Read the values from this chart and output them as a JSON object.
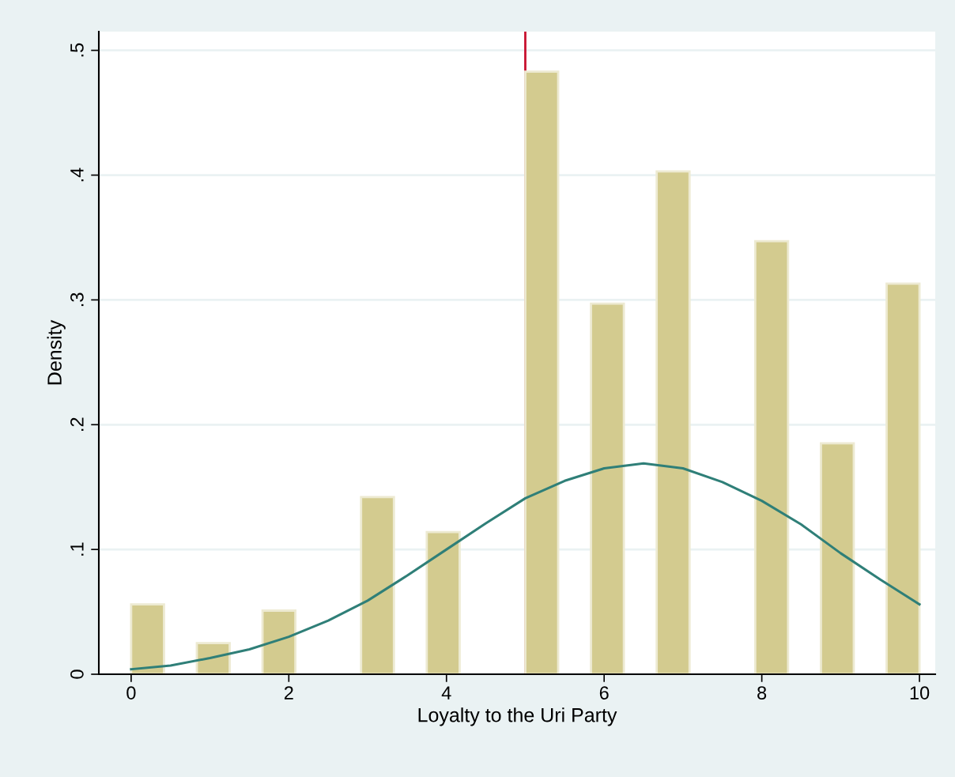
{
  "chart_data": {
    "type": "histogram",
    "xlabel": "Loyalty to the Uri Party",
    "ylabel": "Density",
    "series": [
      {
        "color": "#d3cb8f",
        "bins": [
          0,
          0.4167,
          0.8333,
          1.25,
          1.6667,
          2.0833,
          2.5,
          2.9167,
          3.3333,
          3.75,
          4.1667,
          4.5833,
          5,
          5.4167,
          5.8333,
          6.25,
          6.6667,
          7.0833,
          7.5,
          7.9167,
          8.3333,
          8.75,
          9.1667,
          9.5833,
          10
        ],
        "values": [
          0.056,
          0,
          0.025,
          0,
          0.051,
          0,
          0,
          0.142,
          0,
          0.114,
          0,
          0,
          0.483,
          0,
          0.297,
          0,
          0.403,
          0,
          0,
          0.347,
          0,
          0.185,
          0,
          0.313
        ]
      },
      {
        "type": "line",
        "color": "#2f7f78",
        "x": [
          0,
          0.5,
          1,
          1.5,
          2,
          2.5,
          3,
          3.5,
          4,
          4.5,
          5,
          5.5,
          6,
          6.5,
          7,
          7.5,
          8,
          8.5,
          9,
          9.5,
          10
        ],
        "values": [
          0.004,
          0.007,
          0.013,
          0.02,
          0.03,
          0.043,
          0.059,
          0.079,
          0.1,
          0.121,
          0.141,
          0.155,
          0.165,
          0.169,
          0.165,
          0.154,
          0.139,
          0.12,
          0.097,
          0.076,
          0.056
        ]
      }
    ],
    "ref_lines": [
      {
        "axis": "x",
        "value": 5,
        "color": "#c8102e"
      }
    ],
    "xlim": [
      -0.41,
      10.2
    ],
    "ylim": [
      0,
      0.515
    ],
    "xticks": [
      0,
      2,
      4,
      6,
      8,
      10
    ],
    "yticks": [
      {
        "value": 0,
        "label": "0"
      },
      {
        "value": 0.1,
        "label": ".1"
      },
      {
        "value": 0.2,
        "label": ".2"
      },
      {
        "value": 0.3,
        "label": ".3"
      },
      {
        "value": 0.4,
        "label": ".4"
      },
      {
        "value": 0.5,
        "label": ".5"
      }
    ],
    "grid": "y"
  }
}
